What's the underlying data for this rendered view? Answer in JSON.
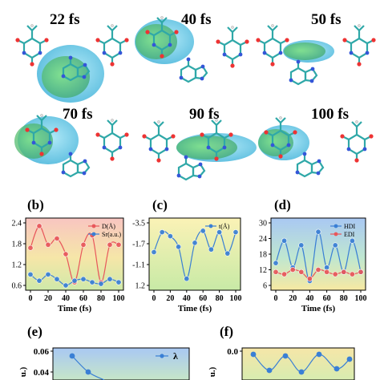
{
  "snapshots": [
    {
      "label": "22 fs"
    },
    {
      "label": "40 fs"
    },
    {
      "label": "50 fs"
    },
    {
      "label": "70 fs"
    },
    {
      "label": "90 fs"
    },
    {
      "label": "100 fs"
    }
  ],
  "panels": {
    "b": {
      "letter": "(b)"
    },
    "c": {
      "letter": "(c)"
    },
    "d": {
      "letter": "(d)"
    },
    "e": {
      "letter": "(e)"
    },
    "f": {
      "letter": "(f)"
    }
  },
  "colors": {
    "red_series": "#e8575b",
    "blue_series": "#3a7fd5",
    "lobe_green": "#6fd36a",
    "lobe_cyan": "#63c9e6",
    "molecule_bonds": "#2fa8a8"
  },
  "chart_data": [
    {
      "panel": "b",
      "type": "line",
      "x": [
        0,
        10,
        20,
        30,
        40,
        50,
        60,
        70,
        80,
        90,
        100
      ],
      "xlabel": "Time (fs)",
      "xticks": [
        "0",
        "20",
        "40",
        "60",
        "80",
        "100"
      ],
      "yticks": [
        "0.6",
        "1.2",
        "1.8",
        "2.4"
      ],
      "ylim": [
        0.4,
        2.4
      ],
      "series": [
        {
          "name": "D(Å)",
          "color": "#e8575b",
          "values": [
            1.6,
            2.3,
            1.7,
            1.9,
            1.4,
            0.5,
            1.7,
            2.0,
            0.5,
            1.7,
            1.7
          ]
        },
        {
          "name": "Sr(a.u.)",
          "color": "#3a7fd5",
          "values": [
            0.75,
            0.55,
            0.75,
            0.6,
            0.4,
            0.55,
            0.6,
            0.5,
            0.45,
            0.6,
            0.5
          ]
        }
      ],
      "legend": "top-right"
    },
    {
      "panel": "c",
      "type": "line",
      "x": [
        0,
        10,
        20,
        30,
        40,
        50,
        60,
        70,
        80,
        90,
        100
      ],
      "xlabel": "Time (fs)",
      "xticks": [
        "0",
        "20",
        "40",
        "60",
        "80",
        "100"
      ],
      "yticks": [
        "1.2",
        "-1.1",
        "-1.7",
        "-3.5"
      ],
      "ylim": [
        -3.5,
        1.2
      ],
      "series": [
        {
          "name": "t(Å)",
          "color": "#3a7fd5",
          "values": [
            -1.0,
            0.5,
            0.2,
            -0.6,
            -3.0,
            -0.3,
            0.6,
            -0.8,
            0.5,
            -1.1,
            0.5
          ]
        }
      ],
      "legend": "top-right"
    },
    {
      "panel": "d",
      "type": "line",
      "x": [
        0,
        10,
        20,
        30,
        40,
        50,
        60,
        70,
        80,
        90,
        100
      ],
      "xlabel": "Time (fs)",
      "xticks": [
        "0",
        "20",
        "40",
        "60",
        "80",
        "100"
      ],
      "yticks": [
        "6",
        "12",
        "18",
        "24",
        "30"
      ],
      "ylim": [
        4,
        32
      ],
      "series": [
        {
          "name": "HDI",
          "color": "#3a7fd5",
          "values": [
            14,
            24,
            12,
            22,
            6,
            28,
            12,
            22,
            10,
            24,
            10
          ]
        },
        {
          "name": "EDI",
          "color": "#e8575b",
          "values": [
            10,
            9,
            11,
            10,
            7,
            11,
            10,
            9,
            10,
            9,
            10
          ]
        }
      ],
      "legend": "top-right"
    },
    {
      "panel": "e",
      "type": "line",
      "yticks": [
        "0.06",
        "0.04"
      ],
      "ylabel": "u.)",
      "series": [
        {
          "name": "λ",
          "color": "#3a7fd5",
          "values": [
            0.055,
            0.045
          ]
        }
      ],
      "legend": "top-right"
    },
    {
      "panel": "f",
      "type": "line",
      "yticks": [
        "0.0"
      ],
      "ylabel": "u.)",
      "series": [
        {
          "name": "",
          "color": "#3a7fd5",
          "values": [
            0.0,
            -0.01,
            0.0,
            -0.01,
            0.0,
            -0.01
          ]
        }
      ]
    }
  ]
}
